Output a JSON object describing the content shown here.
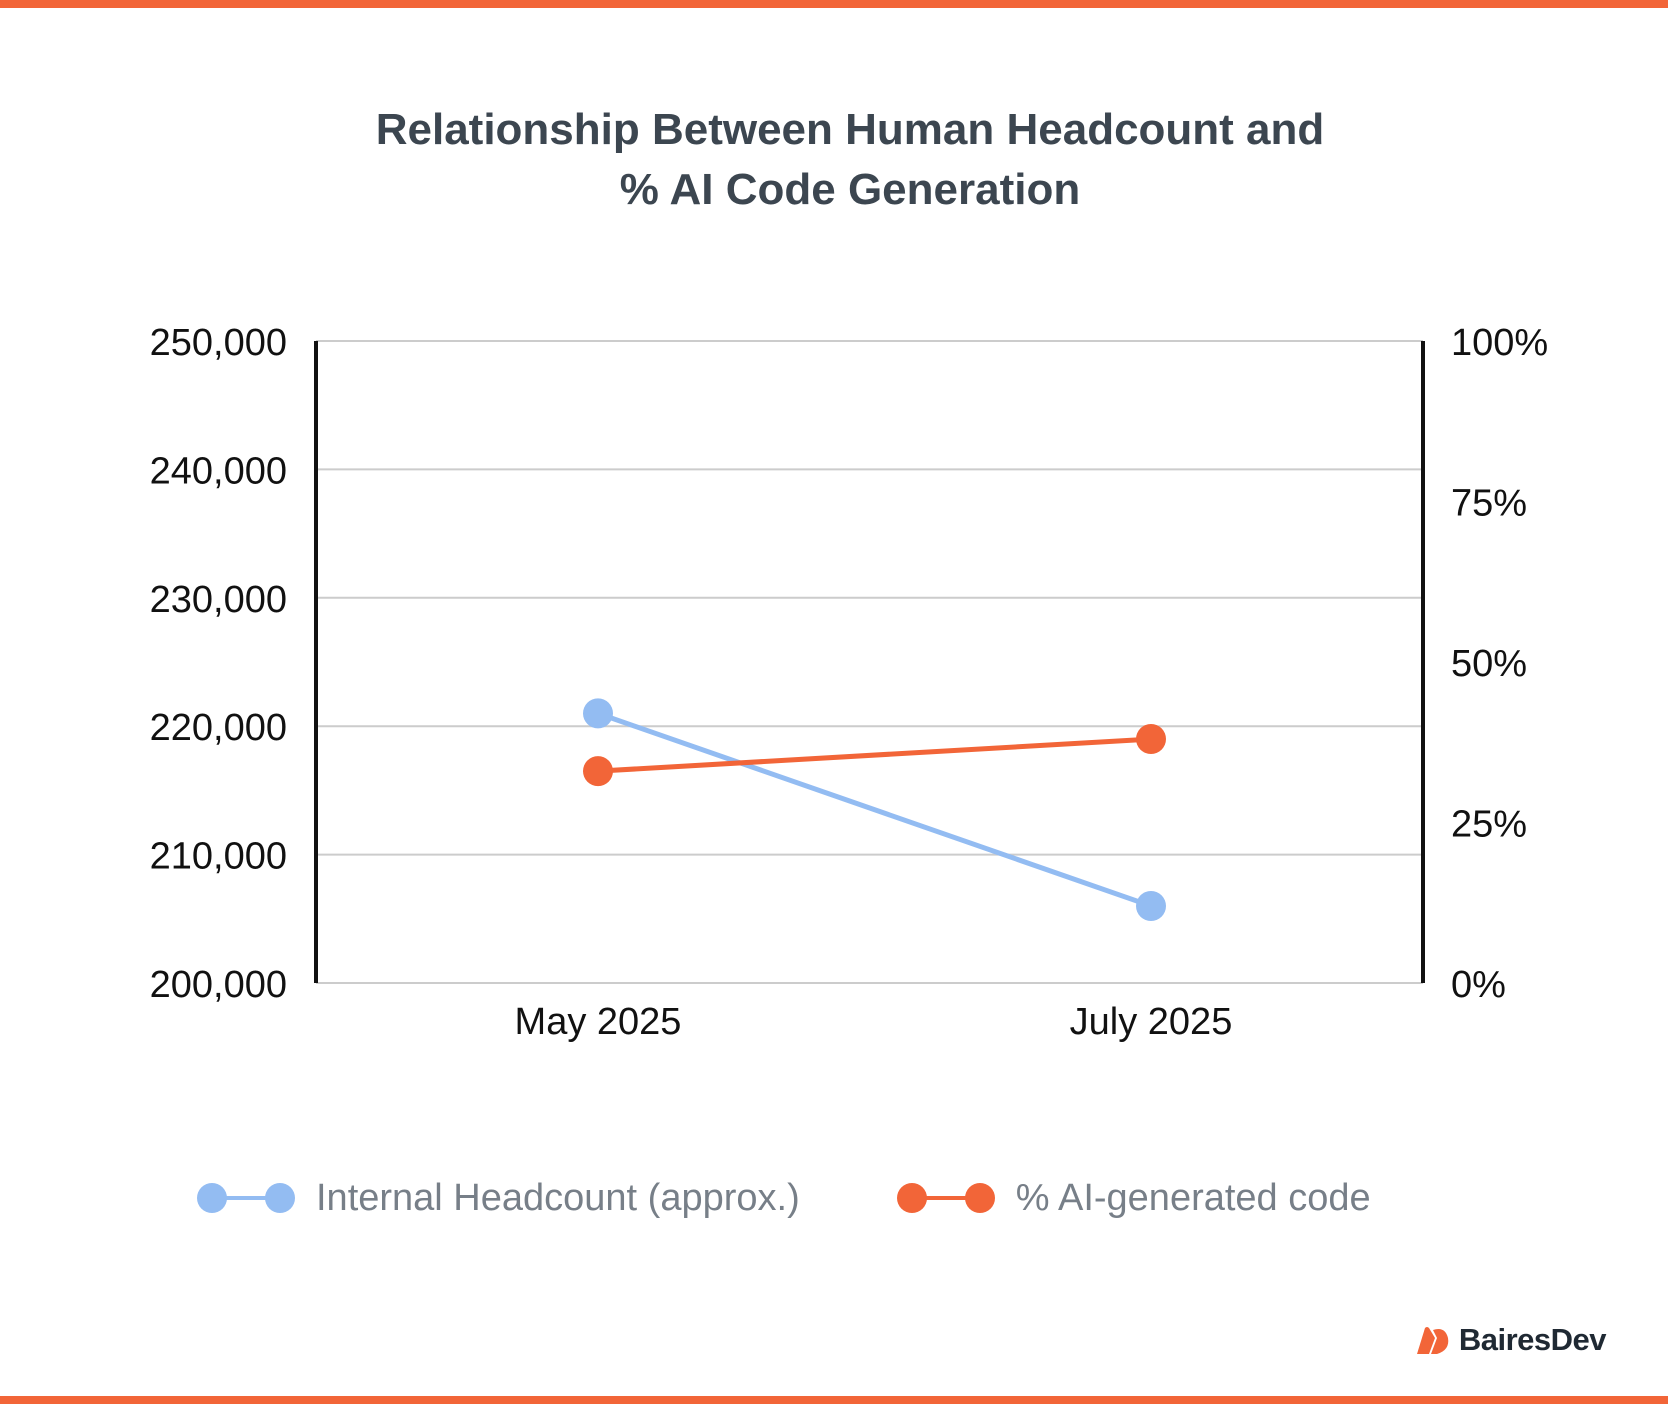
{
  "colors": {
    "accent": "#f26538",
    "headcount": "#93bcf2",
    "ai": "#f26538",
    "title": "#3c4650",
    "grid": "#cccccc",
    "axis": "#111111",
    "legend_text": "#777f88"
  },
  "chart_data": {
    "type": "line",
    "title": "Relationship Between Human Headcount and\n% AI Code Generation",
    "categories": [
      "May 2025",
      "July 2025"
    ],
    "axes": {
      "y_left": {
        "ticks": [
          "250,000",
          "240,000",
          "230,000",
          "220,000",
          "210,000",
          "200,000"
        ],
        "range": [
          200000,
          250000
        ]
      },
      "y_right": {
        "ticks": [
          "100%",
          "75%",
          "50%",
          "25%",
          "0%"
        ],
        "range": [
          0,
          100
        ]
      }
    },
    "series": [
      {
        "name": "Internal Headcount (approx.)",
        "axis": "left",
        "values": [
          221000,
          206000
        ],
        "color": "#93bcf2"
      },
      {
        "name": "% AI-generated code",
        "axis": "right",
        "values": [
          33,
          38
        ],
        "color": "#f26538"
      }
    ],
    "grid": true,
    "legend_position": "bottom"
  },
  "title_line1": "Relationship Between Human Headcount and",
  "title_line2": "% AI Code Generation",
  "legend": [
    {
      "label": "Internal Headcount (approx.)",
      "color": "#93bcf2"
    },
    {
      "label": "% AI-generated code",
      "color": "#f26538"
    }
  ],
  "brand": {
    "name": "BairesDev",
    "logo_icon": "bairesdev-logo-icon"
  }
}
